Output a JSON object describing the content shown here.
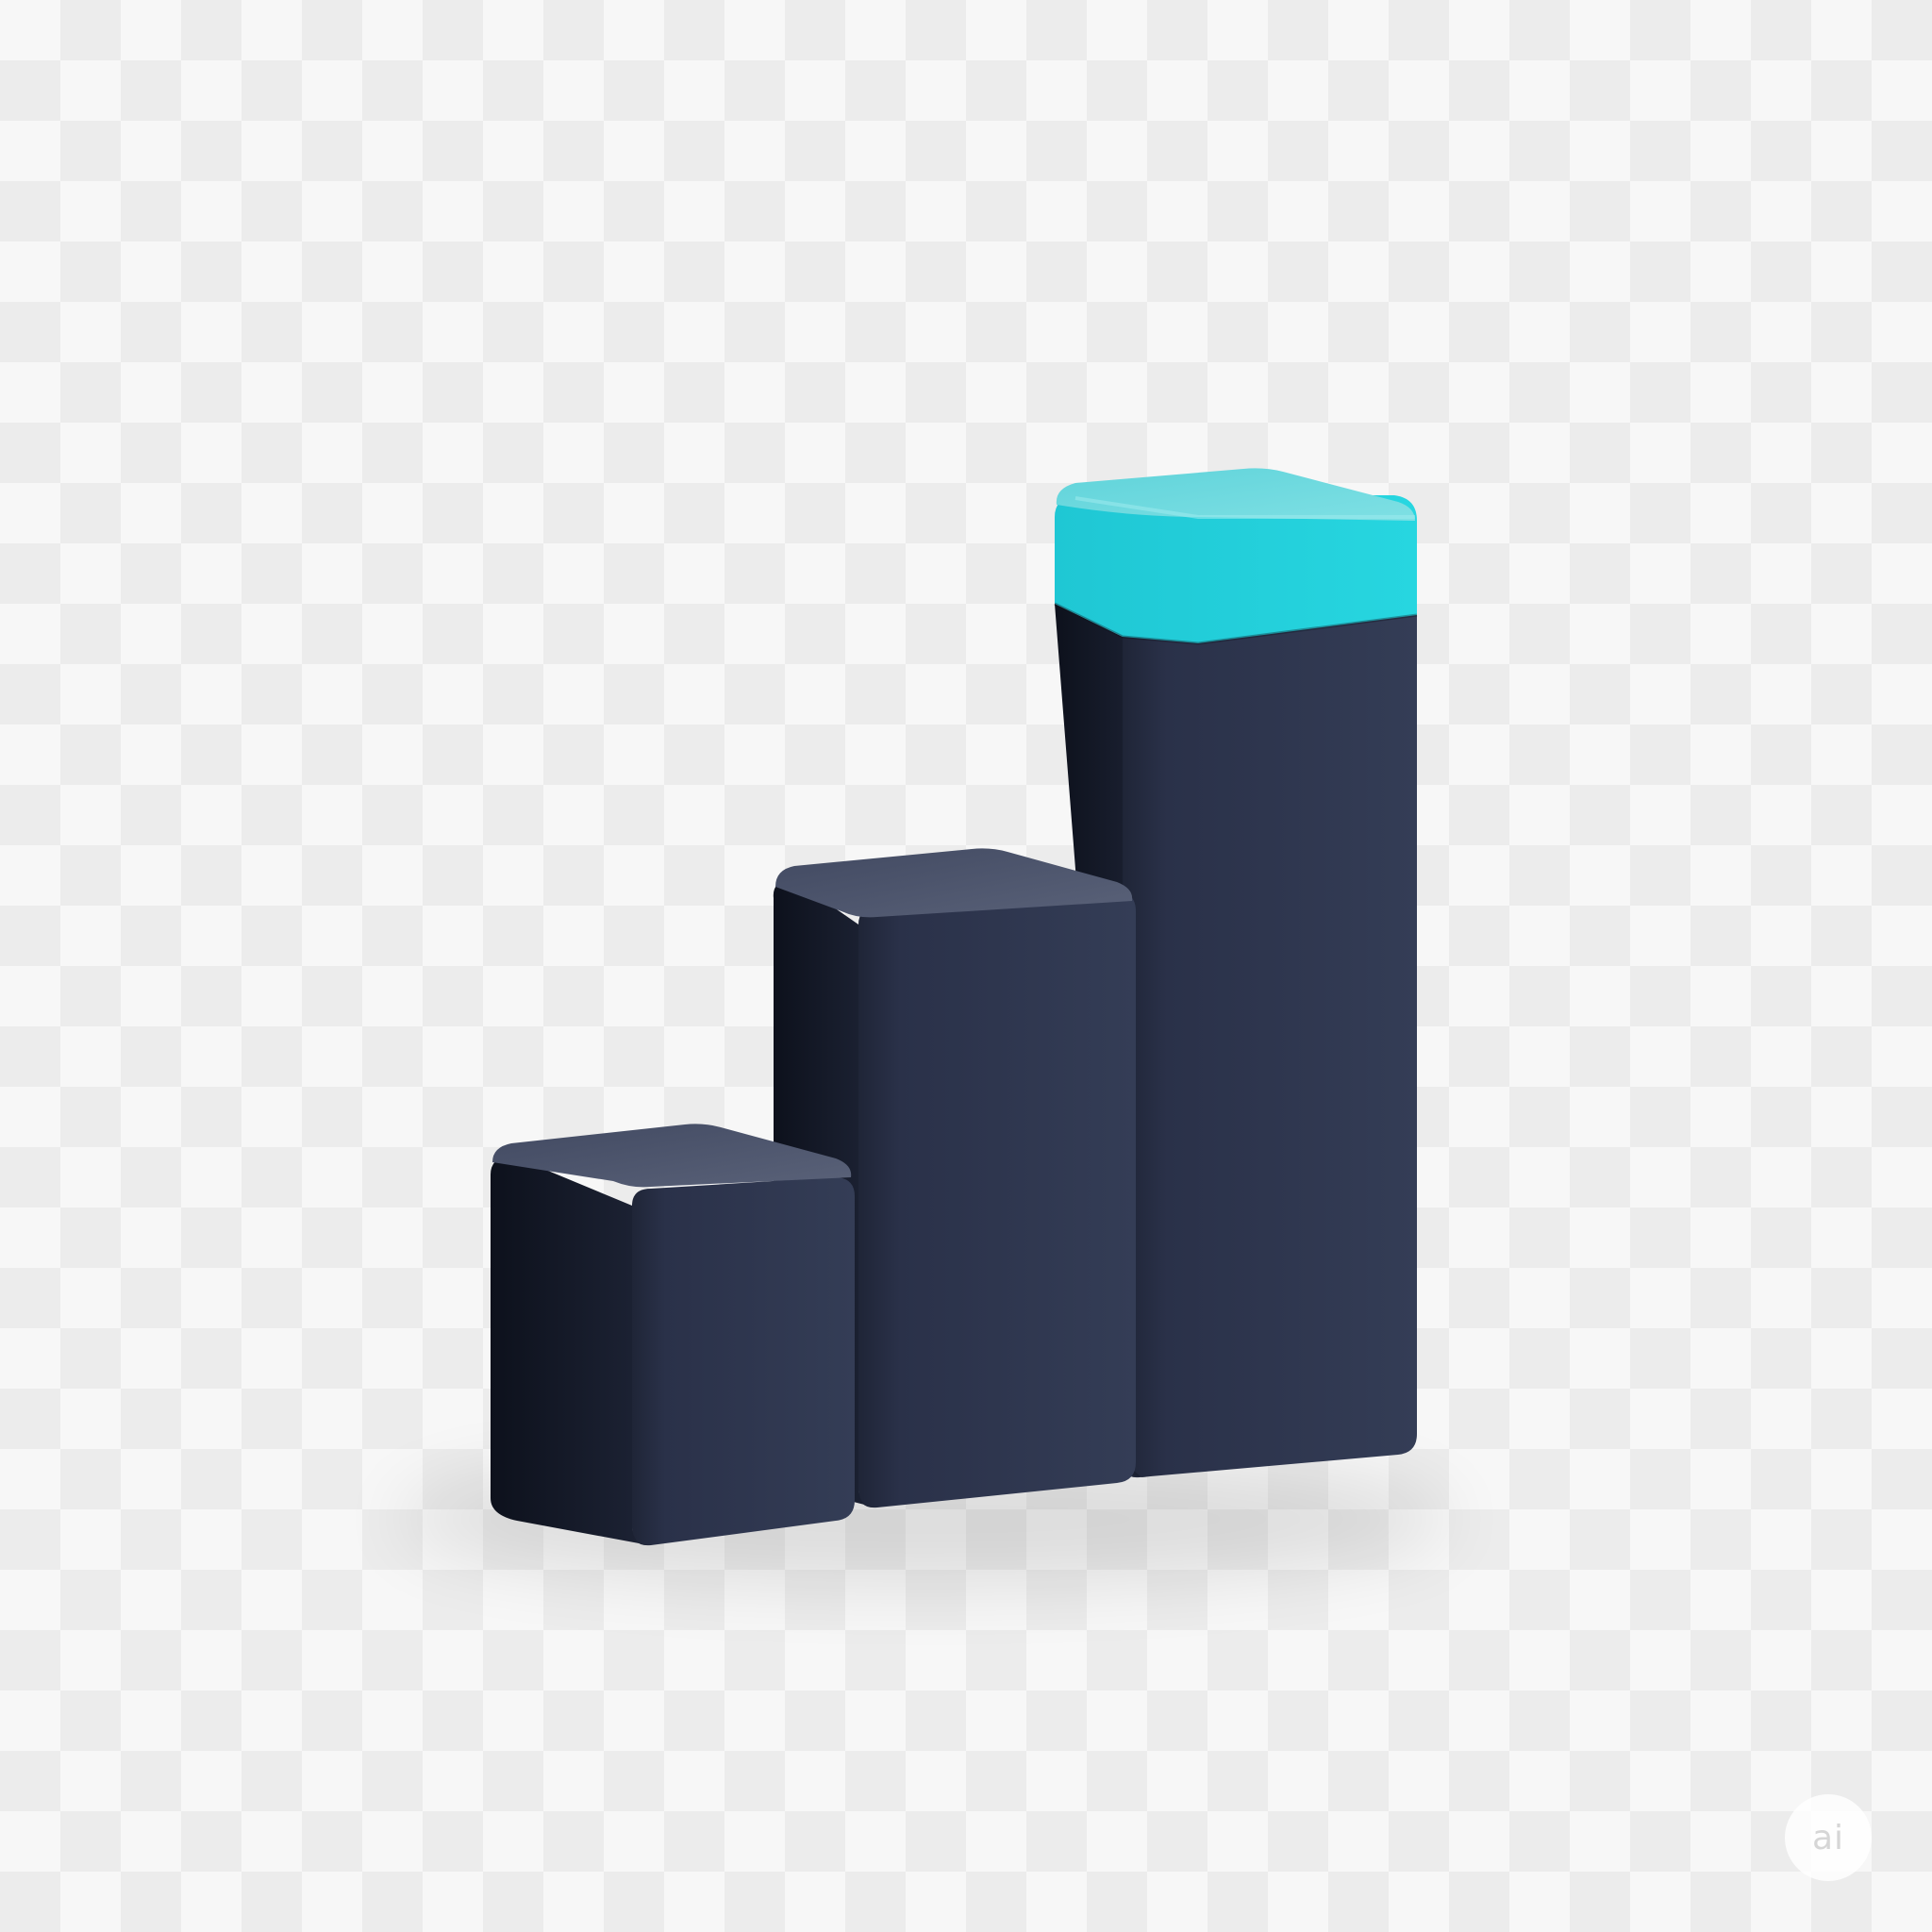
{
  "illustration": {
    "subject": "bar-chart-icon",
    "colors": {
      "bar_front": "#2d3550",
      "bar_front_dark": "#1f2538",
      "bar_side": "#141a29",
      "bar_top": "#4d556c",
      "cap_front": "#22d0dc",
      "cap_top": "#6fdbe0"
    },
    "relative_heights": [
      0.32,
      0.58,
      1.0
    ]
  },
  "watermark": {
    "text": "ai"
  }
}
